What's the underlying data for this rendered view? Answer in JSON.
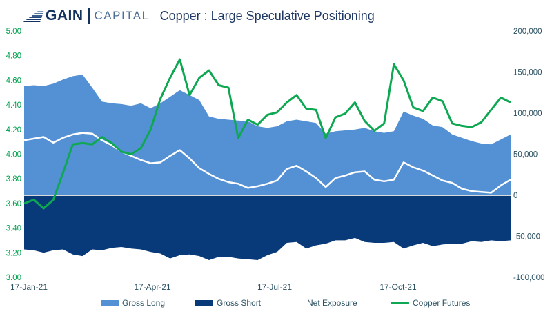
{
  "header": {
    "logo_gain": "GAIN",
    "logo_capital": "CAPITAL",
    "title": "Copper : Large Speculative Positioning"
  },
  "colors": {
    "navy_text": "#1f3864",
    "axis_text": "#2b5162",
    "green_text": "#00a14e",
    "logo_dark": "#12315f",
    "logo_light": "#4c6f96",
    "gross_long": "#5490d4",
    "gross_short": "#083a7a",
    "net_exposure": "#ffffff",
    "copper_futures": "#0ea853",
    "zero_line": "#d9d9d9"
  },
  "chart_data": {
    "type": "combo-area-line",
    "title": "Copper : Large Speculative Positioning",
    "x_tick_labels": [
      "17-Jan-21",
      "17-Apr-21",
      "17-Jul-21",
      "17-Oct-21"
    ],
    "x_tick_indices": [
      0,
      13,
      26,
      39
    ],
    "n_points": 51,
    "y_left": {
      "min": 3.0,
      "max": 5.0,
      "ticks": [
        "5.00",
        "4.80",
        "4.60",
        "4.40",
        "4.20",
        "4.00",
        "3.80",
        "3.60",
        "3.40",
        "3.20",
        "3.00"
      ]
    },
    "y_right": {
      "min": -100000,
      "max": 200000,
      "ticks": [
        "200,000",
        "150,000",
        "100,000",
        "50,000",
        "0",
        "-50,000",
        "-100,000"
      ]
    },
    "series": [
      {
        "name": "Gross Long",
        "axis": "right",
        "kind": "area",
        "values": [
          133000,
          134000,
          133000,
          136000,
          141000,
          145000,
          147000,
          131000,
          114000,
          112000,
          111000,
          109000,
          112000,
          106000,
          112000,
          120000,
          128000,
          122000,
          116000,
          96000,
          93000,
          92000,
          91000,
          90000,
          84000,
          82000,
          84000,
          90000,
          92000,
          90000,
          88000,
          75000,
          78000,
          79000,
          80000,
          82000,
          78000,
          76000,
          78000,
          102000,
          97000,
          93000,
          85000,
          83000,
          74000,
          70000,
          66000,
          63000,
          62000,
          68000,
          74000
        ]
      },
      {
        "name": "Gross Short",
        "axis": "right",
        "kind": "area",
        "values": [
          -66000,
          -67000,
          -70000,
          -67000,
          -66000,
          -72000,
          -74000,
          -66000,
          -67000,
          -64000,
          -63000,
          -65000,
          -66000,
          -69000,
          -71000,
          -77000,
          -73000,
          -72000,
          -74000,
          -79000,
          -75000,
          -75000,
          -77000,
          -78000,
          -79000,
          -73000,
          -69000,
          -58000,
          -57000,
          -65000,
          -61000,
          -59000,
          -55000,
          -55000,
          -52000,
          -57000,
          -58000,
          -58000,
          -57000,
          -65000,
          -61000,
          -58000,
          -62000,
          -60000,
          -59000,
          -59000,
          -56000,
          -57000,
          -55000,
          -56000,
          -55000
        ]
      },
      {
        "name": "Net Exposure",
        "axis": "right",
        "kind": "line",
        "values": [
          67000,
          69000,
          71000,
          64000,
          70000,
          74000,
          76000,
          75000,
          67000,
          61000,
          53000,
          48000,
          43000,
          39000,
          40000,
          48000,
          55000,
          45000,
          33000,
          26000,
          20000,
          16000,
          14000,
          9000,
          11000,
          14000,
          18000,
          32000,
          36000,
          29000,
          21000,
          10000,
          21000,
          24000,
          28000,
          29000,
          19000,
          17000,
          19000,
          40000,
          34000,
          30000,
          24000,
          18000,
          15000,
          8000,
          5000,
          4000,
          3000,
          12000,
          19000
        ]
      },
      {
        "name": "Copper Futures",
        "axis": "left",
        "kind": "line",
        "values": [
          3.6,
          3.63,
          3.56,
          3.63,
          3.85,
          4.08,
          4.09,
          4.08,
          4.14,
          4.09,
          4.02,
          4.0,
          4.05,
          4.2,
          4.45,
          4.62,
          4.77,
          4.48,
          4.62,
          4.68,
          4.56,
          4.54,
          4.13,
          4.28,
          4.24,
          4.32,
          4.34,
          4.42,
          4.48,
          4.37,
          4.36,
          4.13,
          4.3,
          4.33,
          4.42,
          4.27,
          4.19,
          4.25,
          4.73,
          4.6,
          4.38,
          4.35,
          4.46,
          4.43,
          4.25,
          4.23,
          4.22,
          4.26,
          4.36,
          4.46,
          4.42
        ]
      }
    ],
    "legend": [
      {
        "label": "Gross Long",
        "swatch": "rect",
        "color": "#5490d4"
      },
      {
        "label": "Gross Short",
        "swatch": "rect",
        "color": "#083a7a"
      },
      {
        "label": "Net Exposure",
        "swatch": "rect",
        "color": "#ffffff"
      },
      {
        "label": "Copper Futures",
        "swatch": "line",
        "color": "#0ea853"
      }
    ]
  }
}
